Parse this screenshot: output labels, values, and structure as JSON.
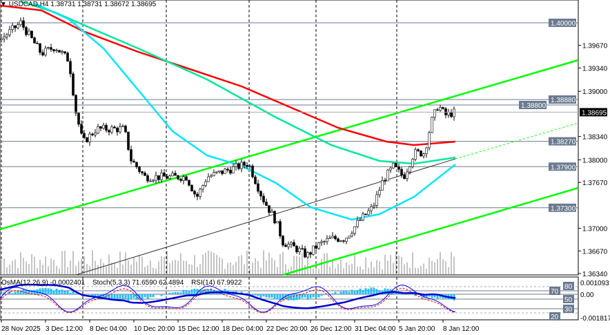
{
  "header": {
    "symbol": "USDCAD,H4",
    "ohlc": "1.38731 1.38731 1.38672 1.38695"
  },
  "indicators": {
    "osma": "OsMA(12,26,9) -0.0002401",
    "stoch": "Stoch(5,3,3) 71.6590 62.4894",
    "rsi": "RSI(14) 67.9922"
  },
  "colors": {
    "ma_slow": "#ff0000",
    "ma_mid": "#00e89a",
    "ma_fast": "#00e5ff",
    "channel": "#00ff00",
    "level": "#6b7a8f",
    "osma": "#29bdf2",
    "rsi": "#0000cc"
  },
  "chart_data": {
    "type": "candlestick",
    "ylim": [
      1.3634,
      1.4033
    ],
    "y_ticks": [
      "1.39670",
      "1.39340",
      "1.39000",
      "1.38340",
      "1.38000",
      "1.37670",
      "1.37000",
      "1.36670",
      "1.36340"
    ],
    "y_tick_values": [
      1.3967,
      1.3934,
      1.39,
      1.3834,
      1.38,
      1.3767,
      1.37,
      1.3667,
      1.3634
    ],
    "levels": [
      {
        "label": "1.40000",
        "value": 1.4
      },
      {
        "label": "1.38880",
        "value": 1.3888
      },
      {
        "label": "1.38800",
        "value": 1.388
      },
      {
        "label": "1.38270",
        "value": 1.3827
      },
      {
        "label": "1.37900",
        "value": 1.379
      },
      {
        "label": "1.37300",
        "value": 1.373
      }
    ],
    "current_price": {
      "label": "1.38695",
      "value": 1.38695
    },
    "x_labels": [
      "28 Nov 2025",
      "3 Dec 12:00",
      "8 Dec 04:00",
      "10 Dec 20:00",
      "15 Dec 12:00",
      "18 Dec 04:00",
      "22 Dec 20:00",
      "26 Dec 12:00",
      "31 Dec 04:00",
      "5 Jan 20:00",
      "8 Jan 12:00"
    ],
    "close_path": [
      [
        0,
        1.3975
      ],
      [
        30,
        1.4
      ],
      [
        40,
        1.3985
      ],
      [
        60,
        1.3955
      ],
      [
        80,
        1.3965
      ],
      [
        100,
        1.3945
      ],
      [
        110,
        1.387
      ],
      [
        120,
        1.3825
      ],
      [
        140,
        1.3845
      ],
      [
        160,
        1.3845
      ],
      [
        180,
        1.3845
      ],
      [
        190,
        1.38
      ],
      [
        210,
        1.3775
      ],
      [
        240,
        1.3775
      ],
      [
        270,
        1.3775
      ],
      [
        285,
        1.3745
      ],
      [
        300,
        1.3775
      ],
      [
        330,
        1.3785
      ],
      [
        360,
        1.3795
      ],
      [
        380,
        1.3745
      ],
      [
        400,
        1.371
      ],
      [
        410,
        1.368
      ],
      [
        430,
        1.367
      ],
      [
        445,
        1.366
      ],
      [
        460,
        1.3675
      ],
      [
        480,
        1.3685
      ],
      [
        500,
        1.3685
      ],
      [
        520,
        1.371
      ],
      [
        540,
        1.373
      ],
      [
        555,
        1.377
      ],
      [
        570,
        1.379
      ],
      [
        585,
        1.3775
      ],
      [
        600,
        1.381
      ],
      [
        615,
        1.381
      ],
      [
        625,
        1.3855
      ],
      [
        635,
        1.388
      ],
      [
        645,
        1.3865
      ],
      [
        660,
        1.38695
      ]
    ],
    "osc_labels": [
      "0.001093",
      "0.00",
      "-0.001817",
      "80",
      "70",
      "50",
      "30",
      "20"
    ]
  }
}
